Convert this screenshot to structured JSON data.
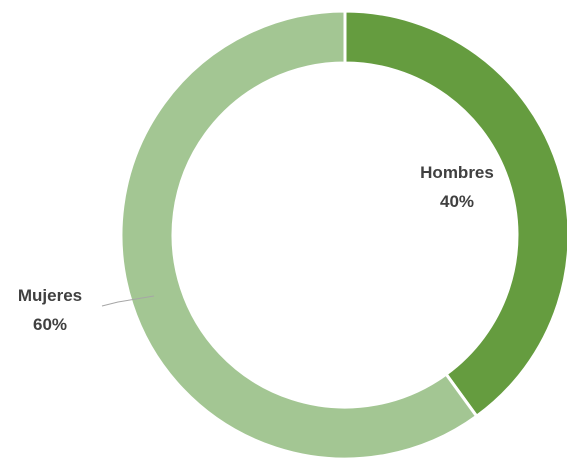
{
  "chart_data": {
    "type": "pie",
    "variant": "donut",
    "categories": [
      "Hombres",
      "Mujeres"
    ],
    "values": [
      40,
      60
    ],
    "value_labels": [
      "40%",
      "60%"
    ],
    "colors": [
      "#659C3F",
      "#A3C693"
    ],
    "title": "",
    "legend": "none"
  }
}
